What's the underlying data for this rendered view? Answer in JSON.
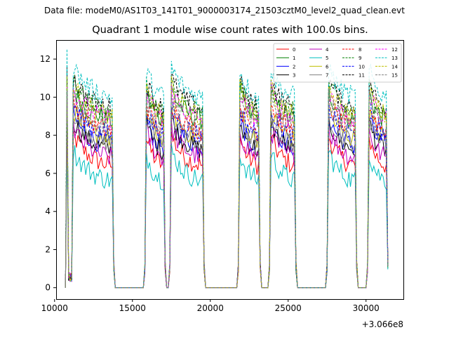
{
  "figure": {
    "suptitle": "Data file: modeM0/AS1T03_141T01_9000003174_21503cztM0_level2_quad_clean.evt"
  },
  "chart_data": {
    "type": "line",
    "title": "Quadrant 1 module wise count rates with 100.0s bins.",
    "xlabel": "",
    "ylabel": "",
    "x_offset_label": "+3.066e8",
    "xlim": [
      10100,
      32400
    ],
    "ylim": [
      -0.6,
      13.0
    ],
    "xticks": [
      10000,
      15000,
      20000,
      25000,
      30000
    ],
    "yticks": [
      0,
      2,
      4,
      6,
      8,
      10,
      12
    ],
    "bin_width_s": 100.0,
    "grid": false,
    "legend": {
      "loc": "upper right",
      "ncol": 4
    },
    "segments": [
      {
        "start": 10800,
        "end": 11100,
        "dip": true
      },
      {
        "start": 11100,
        "end": 13800
      },
      {
        "start": 15800,
        "end": 17100
      },
      {
        "start": 17400,
        "end": 19600
      },
      {
        "start": 21800,
        "end": 23200
      },
      {
        "start": 23800,
        "end": 25500
      },
      {
        "start": 27500,
        "end": 29400
      },
      {
        "start": 30100,
        "end": 31400
      }
    ],
    "series": [
      {
        "name": "0",
        "color": "#ff0000",
        "linestyle": "solid",
        "level": 6.6
      },
      {
        "name": "1",
        "color": "#008000",
        "linestyle": "solid",
        "level": 9.0
      },
      {
        "name": "2",
        "color": "#0000ff",
        "linestyle": "solid",
        "level": 7.6
      },
      {
        "name": "3",
        "color": "#000000",
        "linestyle": "solid",
        "level": 7.4
      },
      {
        "name": "4",
        "color": "#bf00bf",
        "linestyle": "solid",
        "level": 7.0
      },
      {
        "name": "5",
        "color": "#00bfbf",
        "linestyle": "solid",
        "level": 5.8
      },
      {
        "name": "6",
        "color": "#bfbf00",
        "linestyle": "solid",
        "level": 8.0
      },
      {
        "name": "7",
        "color": "#808080",
        "linestyle": "solid",
        "level": 7.8
      },
      {
        "name": "8",
        "color": "#ff0000",
        "linestyle": "dashed",
        "level": 8.4
      },
      {
        "name": "9",
        "color": "#008000",
        "linestyle": "dashed",
        "level": 9.4
      },
      {
        "name": "10",
        "color": "#0000ff",
        "linestyle": "dashed",
        "level": 8.2
      },
      {
        "name": "11",
        "color": "#000000",
        "linestyle": "dashed",
        "level": 9.6
      },
      {
        "name": "12",
        "color": "#ff00ff",
        "linestyle": "dashed",
        "level": 9.0
      },
      {
        "name": "13",
        "color": "#00bfbf",
        "linestyle": "dashed",
        "level": 10.2
      },
      {
        "name": "14",
        "color": "#bfbf00",
        "linestyle": "dashed",
        "level": 9.2
      },
      {
        "name": "15",
        "color": "#808080",
        "linestyle": "dashed",
        "level": 8.6
      }
    ]
  }
}
